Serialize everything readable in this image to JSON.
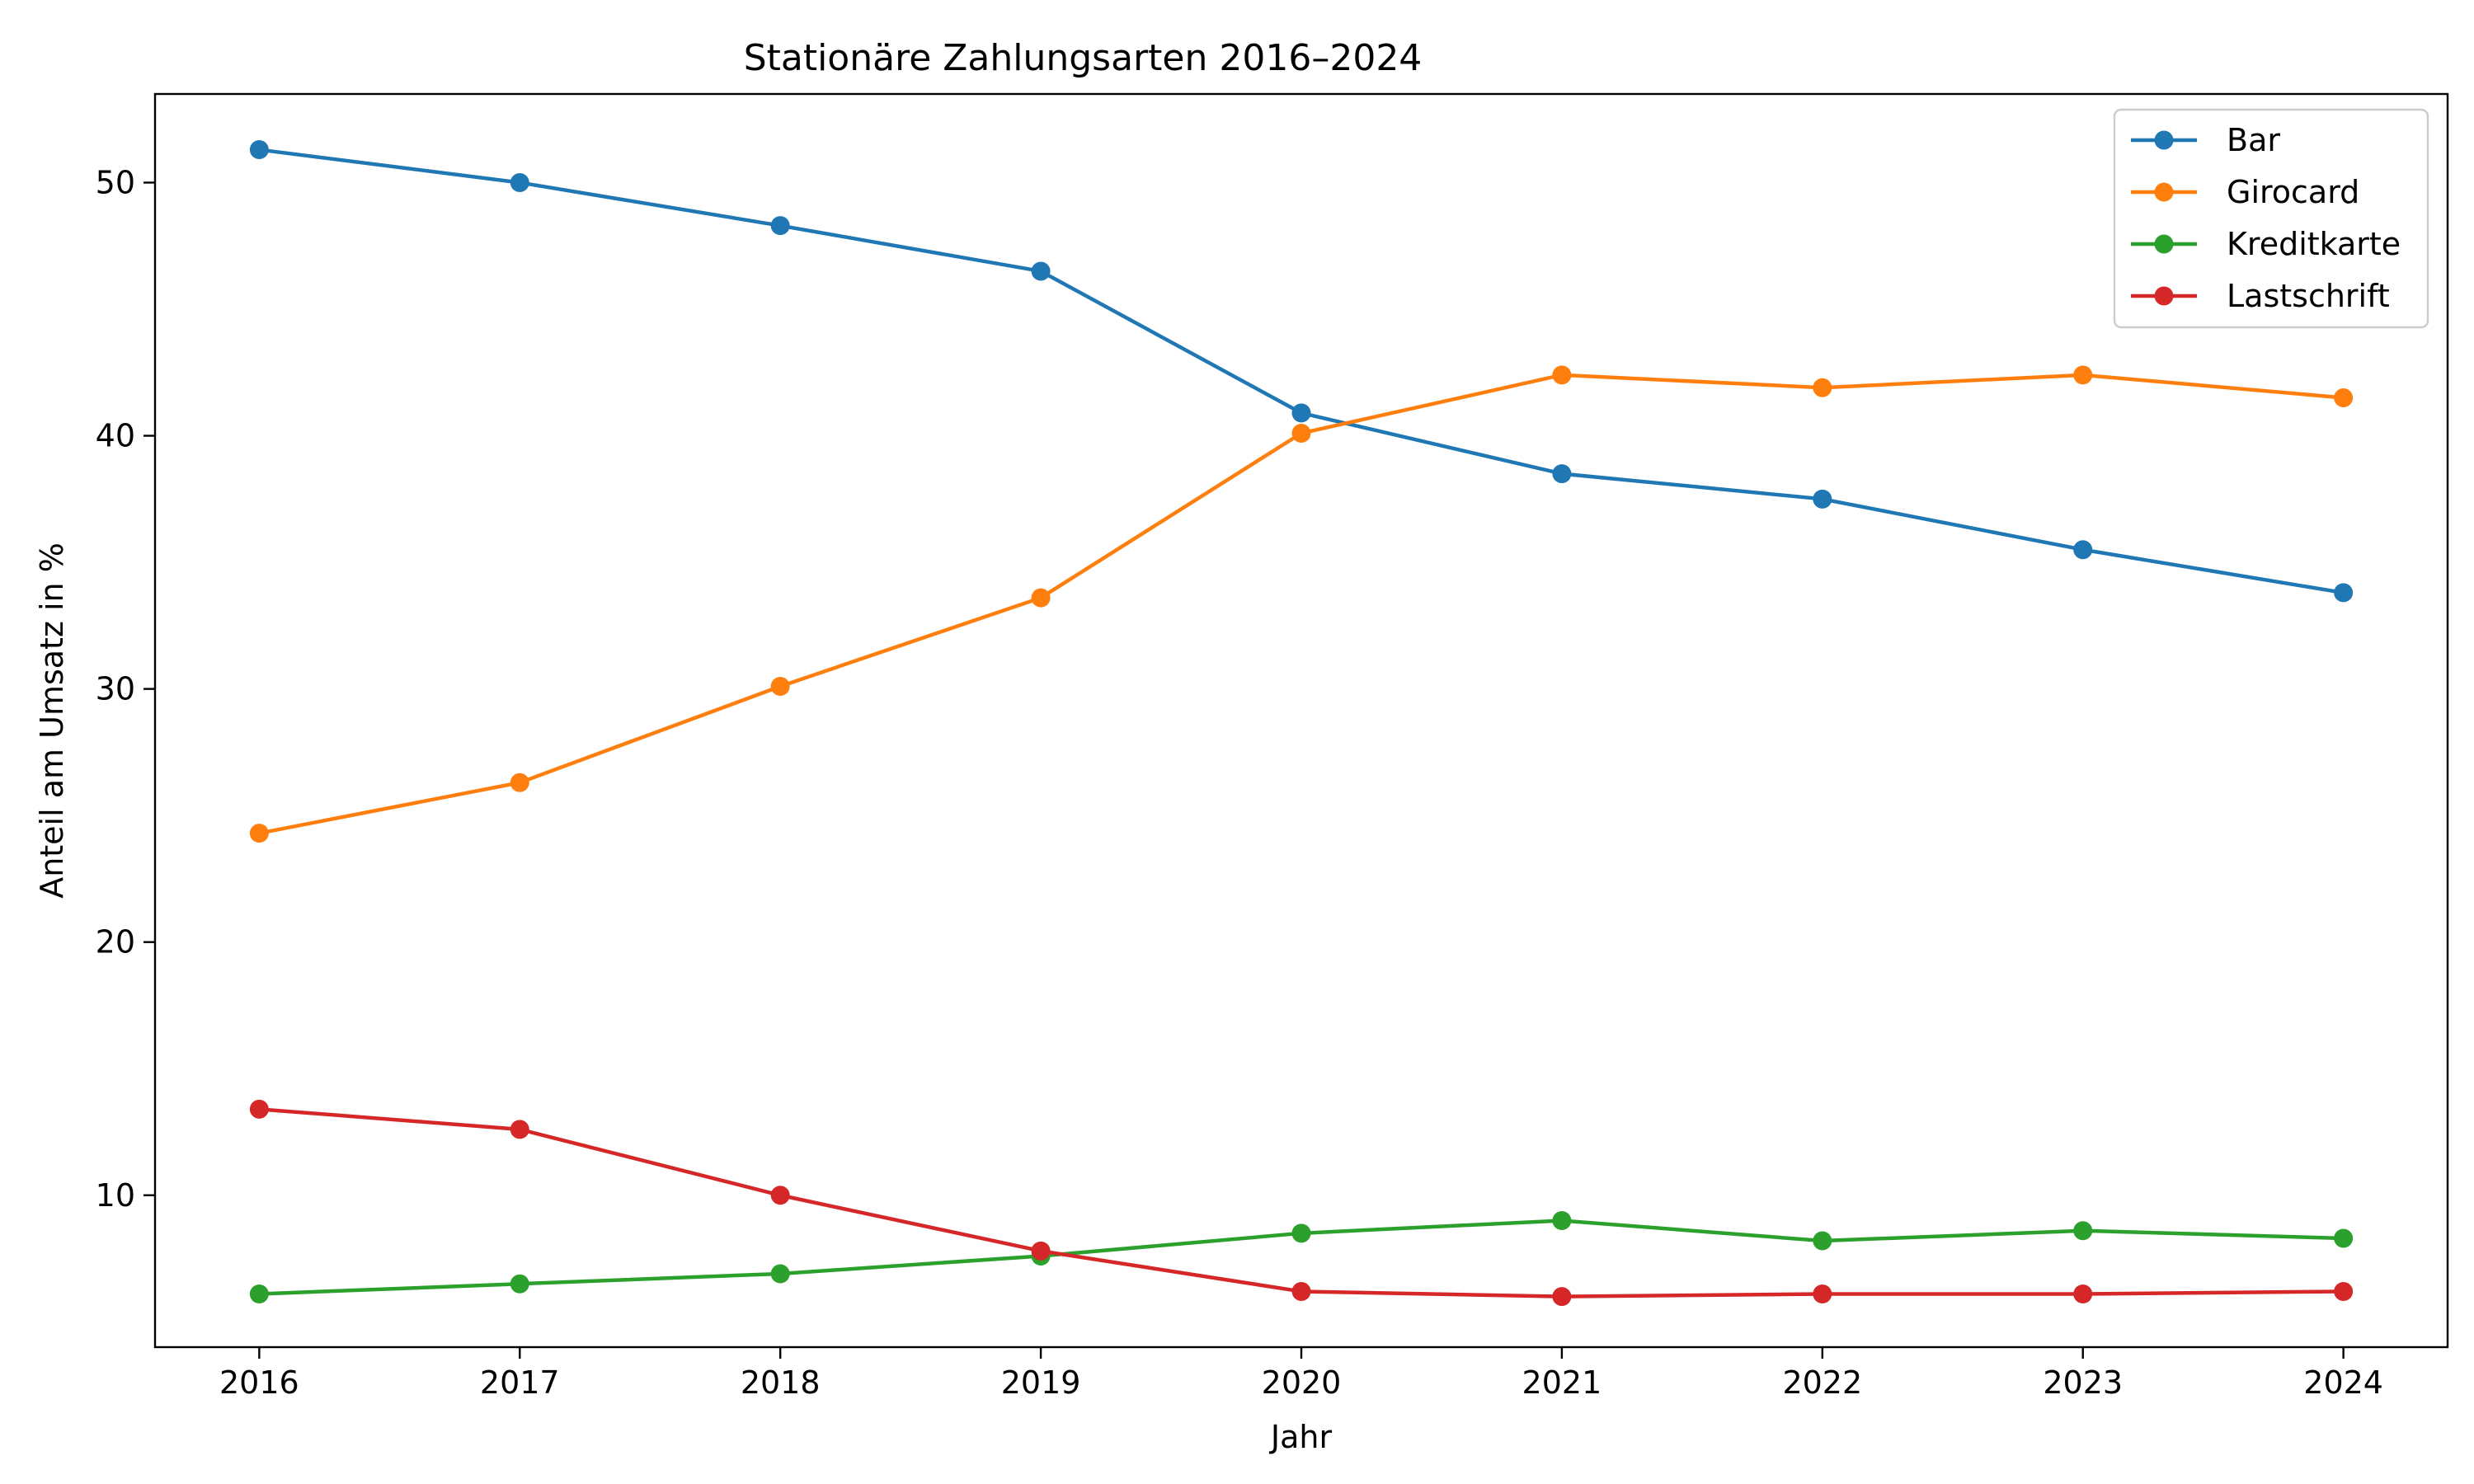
{
  "chart_data": {
    "type": "line",
    "title": "Stationäre Zahlungsarten 2016–2024",
    "xlabel": "Jahr",
    "ylabel": "Anteil am Umsatz in %",
    "x": [
      2016,
      2017,
      2018,
      2019,
      2020,
      2021,
      2022,
      2023,
      2024
    ],
    "xlim": [
      2015.6,
      2024.4
    ],
    "ylim": [
      4.0,
      53.5
    ],
    "yticks": [
      10,
      20,
      30,
      40,
      50
    ],
    "grid": false,
    "legend_position": "top-right",
    "series": [
      {
        "name": "Bar",
        "color": "#1f77b4",
        "values": [
          51.3,
          50.0,
          48.3,
          46.5,
          40.9,
          38.5,
          37.5,
          35.5,
          33.8
        ]
      },
      {
        "name": "Girocard",
        "color": "#ff7f0e",
        "values": [
          24.3,
          26.3,
          30.1,
          33.6,
          40.1,
          42.4,
          41.9,
          42.4,
          41.5
        ]
      },
      {
        "name": "Kreditkarte",
        "color": "#2ca02c",
        "values": [
          6.1,
          6.5,
          6.9,
          7.6,
          8.5,
          9.0,
          8.2,
          8.6,
          8.3
        ]
      },
      {
        "name": "Lastschrift",
        "color": "#d62728",
        "values": [
          13.4,
          12.6,
          10.0,
          7.8,
          6.2,
          6.0,
          6.1,
          6.1,
          6.2
        ]
      }
    ]
  }
}
